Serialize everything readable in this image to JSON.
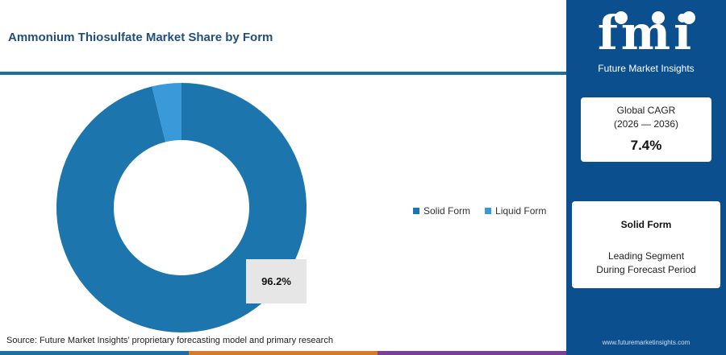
{
  "header": {
    "title": "Ammonium Thiosulfate Market Share by Form"
  },
  "chart_data": {
    "type": "pie",
    "donut": true,
    "categories": [
      "Solid Form",
      "Liquid Form"
    ],
    "values": [
      96.2,
      3.8
    ],
    "unit": "%",
    "colors": [
      "#1c75ad",
      "#3a9ad9"
    ],
    "highlight_label": "96.2%",
    "legend_position": "right"
  },
  "legend": [
    {
      "label": "Solid Form",
      "color": "#1c75ad"
    },
    {
      "label": "Liquid Form",
      "color": "#3a9ad9"
    }
  ],
  "footer": {
    "source": "Source: Future Market Insights’ proprietary forecasting model and primary research"
  },
  "sidebar": {
    "logo_letters": "fmi",
    "logo_tagline": "Future Market Insights",
    "cagr": {
      "label_line1": "Global CAGR",
      "label_line2": "(2026 — 2036)",
      "value": "7.4%"
    },
    "segment": {
      "name": "Solid Form",
      "desc_line1": "Leading Segment",
      "desc_line2": "During Forecast Period"
    },
    "website": "www.futuremarketinsights.com"
  },
  "colors": {
    "sidebar": "#0b4f8f",
    "accent": "#1c6ea4",
    "bottom_bar": [
      "#1c6ea4",
      "#d9772b",
      "#7b3f98"
    ]
  }
}
